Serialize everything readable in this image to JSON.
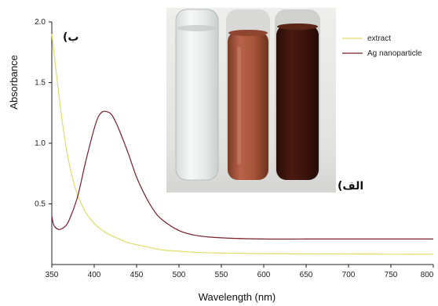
{
  "chart_data": {
    "type": "line",
    "xlabel": "Wavelength (nm)",
    "ylabel": "Absorbance",
    "xlim": [
      350,
      800
    ],
    "ylim": [
      0,
      2.0
    ],
    "x_ticks": [
      "350",
      "400",
      "450",
      "500",
      "550",
      "600",
      "650",
      "700",
      "750",
      "800"
    ],
    "y_ticks": [
      "0.5",
      "1.0",
      "1.5",
      "2.0"
    ],
    "legend_position": "top-right",
    "inset_panel_label": "(الف",
    "main_panel_label": "(ب",
    "inset_photo": "photo of three test tubes: clear extract, brown solution, dark brown Ag nanoparticle suspension",
    "series": [
      {
        "name": "extract",
        "color": "#e0dc6a",
        "x": [
          350,
          355,
          360,
          365,
          370,
          375,
          380,
          390,
          400,
          410,
          420,
          440,
          460,
          480,
          500,
          520,
          550,
          600,
          650,
          700,
          750,
          800
        ],
        "y": [
          1.9,
          1.6,
          1.3,
          1.05,
          0.85,
          0.7,
          0.58,
          0.43,
          0.34,
          0.28,
          0.24,
          0.18,
          0.15,
          0.12,
          0.11,
          0.1,
          0.095,
          0.09,
          0.088,
          0.087,
          0.085,
          0.085
        ]
      },
      {
        "name": "Ag nanoparticle",
        "color": "#7a1e2a",
        "x": [
          350,
          352,
          355,
          358,
          360,
          365,
          370,
          380,
          390,
          400,
          405,
          410,
          415,
          420,
          425,
          430,
          440,
          450,
          460,
          470,
          480,
          500,
          520,
          550,
          600,
          650,
          700,
          750,
          800
        ],
        "y": [
          0.4,
          0.33,
          0.3,
          0.29,
          0.29,
          0.31,
          0.36,
          0.55,
          0.85,
          1.12,
          1.22,
          1.26,
          1.26,
          1.24,
          1.18,
          1.1,
          0.92,
          0.72,
          0.57,
          0.45,
          0.37,
          0.28,
          0.24,
          0.22,
          0.21,
          0.21,
          0.21,
          0.21,
          0.21
        ]
      }
    ]
  }
}
